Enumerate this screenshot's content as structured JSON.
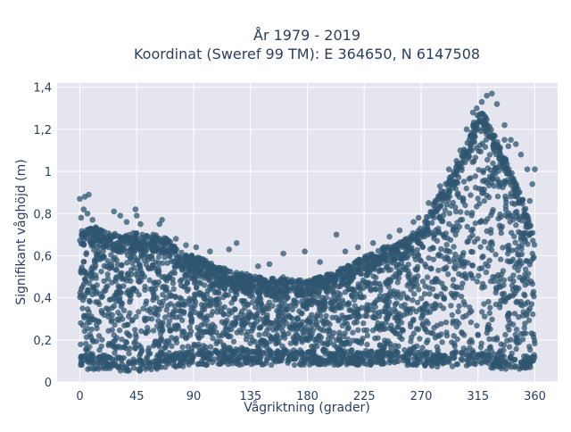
{
  "chart_data": {
    "type": "scatter",
    "title_line1": "År 1979 - 2019",
    "title_line2": "Koordinat (Sweref 99 TM): E 364650, N 6147508",
    "xlabel": "Vågriktning (grader)",
    "ylabel": "Signifikant våghöjd (m)",
    "xlim": [
      -18,
      378
    ],
    "ylim": [
      0,
      1.42
    ],
    "x_ticks": [
      0,
      45,
      90,
      135,
      180,
      225,
      270,
      315,
      360
    ],
    "x_tick_labels": [
      "0",
      "45",
      "90",
      "135",
      "180",
      "225",
      "270",
      "315",
      "360"
    ],
    "y_ticks": [
      0,
      0.2,
      0.4,
      0.6,
      0.8,
      1,
      1.2,
      1.4
    ],
    "y_tick_labels": [
      "0",
      "0,2",
      "0,4",
      "0,6",
      "0,8",
      "1",
      "1,2",
      "1,4"
    ],
    "grid": true,
    "marker_color": "#2f5670",
    "background_color": "#e5e5ef",
    "envelope": {
      "direction": [
        0,
        10,
        20,
        30,
        40,
        45,
        50,
        60,
        70,
        80,
        90,
        100,
        110,
        120,
        130,
        140,
        150,
        160,
        170,
        180,
        190,
        200,
        210,
        220,
        230,
        240,
        250,
        260,
        270,
        280,
        290,
        300,
        310,
        315,
        320,
        330,
        340,
        350,
        360
      ],
      "upper_height": [
        0.72,
        0.74,
        0.72,
        0.7,
        0.7,
        0.72,
        0.7,
        0.7,
        0.68,
        0.62,
        0.6,
        0.58,
        0.55,
        0.53,
        0.52,
        0.5,
        0.49,
        0.5,
        0.49,
        0.48,
        0.5,
        0.52,
        0.55,
        0.58,
        0.61,
        0.64,
        0.66,
        0.69,
        0.74,
        0.85,
        0.95,
        1.05,
        1.2,
        1.3,
        1.27,
        1.15,
        1.02,
        0.88,
        0.68
      ],
      "lower_height": [
        0.06,
        0.06,
        0.06,
        0.05,
        0.05,
        0.05,
        0.05,
        0.06,
        0.07,
        0.07,
        0.08,
        0.08,
        0.08,
        0.08,
        0.08,
        0.08,
        0.08,
        0.08,
        0.08,
        0.08,
        0.08,
        0.08,
        0.08,
        0.08,
        0.08,
        0.08,
        0.08,
        0.08,
        0.08,
        0.07,
        0.07,
        0.07,
        0.07,
        0.07,
        0.07,
        0.06,
        0.06,
        0.06,
        0.06
      ]
    },
    "outliers": [
      {
        "x": 0,
        "y": 0.87
      },
      {
        "x": 4,
        "y": 0.88
      },
      {
        "x": 7,
        "y": 0.89
      },
      {
        "x": 3,
        "y": 0.82
      },
      {
        "x": 1,
        "y": 0.78
      },
      {
        "x": 6,
        "y": 0.8
      },
      {
        "x": 10,
        "y": 0.77
      },
      {
        "x": 17,
        "y": 0.72
      },
      {
        "x": 27,
        "y": 0.81
      },
      {
        "x": 32,
        "y": 0.79
      },
      {
        "x": 37,
        "y": 0.76
      },
      {
        "x": 44,
        "y": 0.82
      },
      {
        "x": 45,
        "y": 0.79
      },
      {
        "x": 48,
        "y": 0.75
      },
      {
        "x": 65,
        "y": 0.77
      },
      {
        "x": 63,
        "y": 0.75
      },
      {
        "x": 58,
        "y": 0.7
      },
      {
        "x": 76,
        "y": 0.68
      },
      {
        "x": 84,
        "y": 0.65
      },
      {
        "x": 92,
        "y": 0.64
      },
      {
        "x": 103,
        "y": 0.62
      },
      {
        "x": 118,
        "y": 0.63
      },
      {
        "x": 124,
        "y": 0.66
      },
      {
        "x": 141,
        "y": 0.55
      },
      {
        "x": 150,
        "y": 0.56
      },
      {
        "x": 161,
        "y": 0.61
      },
      {
        "x": 178,
        "y": 0.62
      },
      {
        "x": 190,
        "y": 0.57
      },
      {
        "x": 203,
        "y": 0.7
      },
      {
        "x": 210,
        "y": 0.62
      },
      {
        "x": 220,
        "y": 0.64
      },
      {
        "x": 232,
        "y": 0.66
      },
      {
        "x": 245,
        "y": 0.69
      },
      {
        "x": 253,
        "y": 0.72
      },
      {
        "x": 264,
        "y": 0.76
      },
      {
        "x": 268,
        "y": 0.78
      },
      {
        "x": 276,
        "y": 0.85
      },
      {
        "x": 285,
        "y": 0.93
      },
      {
        "x": 292,
        "y": 1.01
      },
      {
        "x": 301,
        "y": 1.1
      },
      {
        "x": 298,
        "y": 1.05
      },
      {
        "x": 306,
        "y": 1.2
      },
      {
        "x": 311,
        "y": 1.28
      },
      {
        "x": 314,
        "y": 1.3
      },
      {
        "x": 318,
        "y": 1.33
      },
      {
        "x": 322,
        "y": 1.36
      },
      {
        "x": 326,
        "y": 1.37
      },
      {
        "x": 330,
        "y": 1.32
      },
      {
        "x": 336,
        "y": 1.22
      },
      {
        "x": 341,
        "y": 1.15
      },
      {
        "x": 345,
        "y": 1.13
      },
      {
        "x": 349,
        "y": 1.08
      },
      {
        "x": 354,
        "y": 1.01
      },
      {
        "x": 358,
        "y": 0.94
      },
      {
        "x": 356,
        "y": 0.86
      },
      {
        "x": 360,
        "y": 1.01
      },
      {
        "x": 336,
        "y": 1.15
      },
      {
        "x": 339,
        "y": 1.12
      }
    ]
  }
}
